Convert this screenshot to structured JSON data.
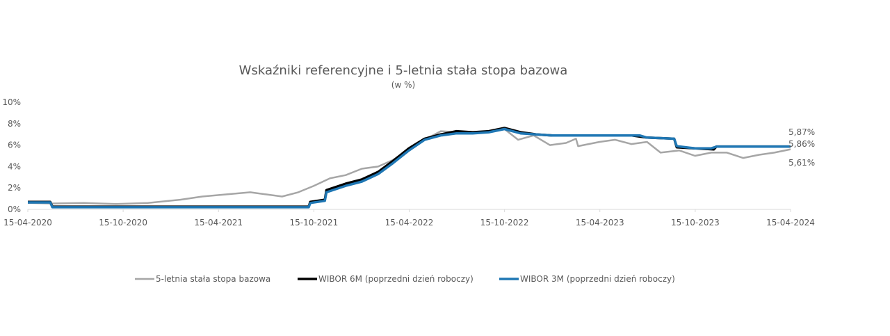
{
  "chart_data": {
    "type": "line",
    "title": "Wskaźniki referencyjne i 5-letnia stała stopa bazowa",
    "subtitle": "(w %)",
    "xlabel": "",
    "ylabel": "",
    "xlim": [
      "2020-04-15",
      "2024-04-15"
    ],
    "ylim": [
      0,
      10
    ],
    "x_ticks": [
      "15-04-2020",
      "15-10-2020",
      "15-04-2021",
      "15-10-2021",
      "15-04-2022",
      "15-10-2022",
      "15-04-2023",
      "15-10-2023",
      "15-04-2024"
    ],
    "y_ticks": [
      "0%",
      "2%",
      "4%",
      "6%",
      "8%",
      "10%"
    ],
    "grid": false,
    "legend": "bottom",
    "end_labels": [
      "5,87%",
      "5,86%",
      "5,61%"
    ],
    "series": [
      {
        "name": "5-letnia stała stopa bazowa",
        "color": "#a6a6a6",
        "points": [
          [
            "2020-04-15",
            0.6
          ],
          [
            "2020-06-01",
            0.55
          ],
          [
            "2020-08-01",
            0.6
          ],
          [
            "2020-10-01",
            0.5
          ],
          [
            "2020-12-01",
            0.6
          ],
          [
            "2021-02-01",
            0.9
          ],
          [
            "2021-03-15",
            1.2
          ],
          [
            "2021-05-01",
            1.4
          ],
          [
            "2021-06-15",
            1.6
          ],
          [
            "2021-07-15",
            1.4
          ],
          [
            "2021-08-15",
            1.2
          ],
          [
            "2021-09-15",
            1.6
          ],
          [
            "2021-10-15",
            2.2
          ],
          [
            "2021-11-15",
            2.9
          ],
          [
            "2021-12-15",
            3.2
          ],
          [
            "2022-01-15",
            3.8
          ],
          [
            "2022-02-15",
            4.0
          ],
          [
            "2022-03-15",
            4.6
          ],
          [
            "2022-04-15",
            5.6
          ],
          [
            "2022-05-15",
            6.5
          ],
          [
            "2022-06-15",
            7.3
          ],
          [
            "2022-07-15",
            7.2
          ],
          [
            "2022-08-15",
            7.2
          ],
          [
            "2022-09-15",
            7.2
          ],
          [
            "2022-10-15",
            7.5
          ],
          [
            "2022-11-10",
            6.5
          ],
          [
            "2022-12-10",
            6.9
          ],
          [
            "2023-01-10",
            6.0
          ],
          [
            "2023-02-10",
            6.2
          ],
          [
            "2023-03-01",
            6.6
          ],
          [
            "2023-03-05",
            5.9
          ],
          [
            "2023-04-15",
            6.3
          ],
          [
            "2023-05-15",
            6.5
          ],
          [
            "2023-06-15",
            6.1
          ],
          [
            "2023-07-15",
            6.3
          ],
          [
            "2023-08-10",
            5.3
          ],
          [
            "2023-09-15",
            5.5
          ],
          [
            "2023-10-15",
            5.0
          ],
          [
            "2023-11-15",
            5.3
          ],
          [
            "2023-12-15",
            5.3
          ],
          [
            "2024-01-15",
            4.8
          ],
          [
            "2024-02-15",
            5.1
          ],
          [
            "2024-03-15",
            5.3
          ],
          [
            "2024-04-15",
            5.61
          ]
        ]
      },
      {
        "name": "WIBOR 6M (poprzedni dzień roboczy)",
        "color": "#000000",
        "points": [
          [
            "2020-04-15",
            0.7
          ],
          [
            "2020-05-28",
            0.7
          ],
          [
            "2020-06-01",
            0.25
          ],
          [
            "2021-10-05",
            0.25
          ],
          [
            "2021-10-08",
            0.7
          ],
          [
            "2021-11-05",
            0.9
          ],
          [
            "2021-11-08",
            1.8
          ],
          [
            "2021-12-15",
            2.4
          ],
          [
            "2022-01-15",
            2.8
          ],
          [
            "2022-02-15",
            3.5
          ],
          [
            "2022-03-15",
            4.5
          ],
          [
            "2022-04-15",
            5.7
          ],
          [
            "2022-05-15",
            6.6
          ],
          [
            "2022-06-15",
            7.0
          ],
          [
            "2022-07-15",
            7.3
          ],
          [
            "2022-08-15",
            7.2
          ],
          [
            "2022-09-15",
            7.3
          ],
          [
            "2022-10-15",
            7.6
          ],
          [
            "2022-11-15",
            7.2
          ],
          [
            "2022-12-15",
            7.0
          ],
          [
            "2023-01-15",
            6.9
          ],
          [
            "2023-06-15",
            6.9
          ],
          [
            "2023-07-15",
            6.7
          ],
          [
            "2023-09-05",
            6.6
          ],
          [
            "2023-09-10",
            5.8
          ],
          [
            "2023-10-15",
            5.7
          ],
          [
            "2023-11-20",
            5.6
          ],
          [
            "2023-11-25",
            5.87
          ],
          [
            "2024-04-15",
            5.87
          ]
        ]
      },
      {
        "name": "WIBOR 3M (poprzedni dzień roboczy)",
        "color": "#1f77b4",
        "points": [
          [
            "2020-04-15",
            0.65
          ],
          [
            "2020-05-28",
            0.65
          ],
          [
            "2020-06-01",
            0.2
          ],
          [
            "2021-10-05",
            0.2
          ],
          [
            "2021-10-08",
            0.6
          ],
          [
            "2021-11-05",
            0.8
          ],
          [
            "2021-11-08",
            1.6
          ],
          [
            "2021-12-15",
            2.2
          ],
          [
            "2022-01-15",
            2.6
          ],
          [
            "2022-02-15",
            3.3
          ],
          [
            "2022-03-15",
            4.3
          ],
          [
            "2022-04-15",
            5.5
          ],
          [
            "2022-05-15",
            6.5
          ],
          [
            "2022-06-15",
            6.9
          ],
          [
            "2022-07-15",
            7.1
          ],
          [
            "2022-08-15",
            7.1
          ],
          [
            "2022-09-15",
            7.2
          ],
          [
            "2022-10-15",
            7.5
          ],
          [
            "2022-11-15",
            7.1
          ],
          [
            "2022-12-15",
            7.0
          ],
          [
            "2023-01-15",
            6.9
          ],
          [
            "2023-07-01",
            6.9
          ],
          [
            "2023-07-15",
            6.7
          ],
          [
            "2023-09-05",
            6.6
          ],
          [
            "2023-09-10",
            5.9
          ],
          [
            "2023-10-15",
            5.7
          ],
          [
            "2023-11-15",
            5.7
          ],
          [
            "2023-11-25",
            5.86
          ],
          [
            "2024-04-15",
            5.86
          ]
        ]
      }
    ]
  }
}
